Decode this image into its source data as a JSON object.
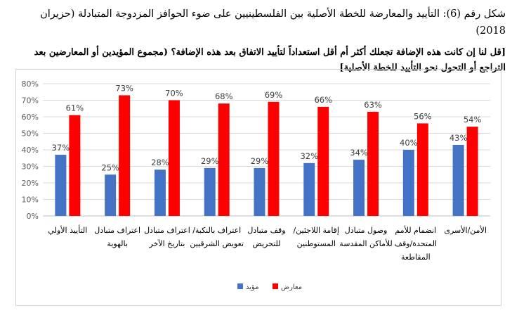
{
  "title": "شكل رقم (6): التأييد والمعارضة للخطة الأصلية بين الفلسطينيين  على ضوء الحوافز المزدوجة المتبادلة (حزيران 2018)",
  "subtitle": "[قل لنا إن كانت هذه الإضافة تجعلك أكثر أم أقل استعداداً لتأييد الاتفاق بعد هذه الإضافة؟ (مجموع المؤيدين أو المعارضين بعد التراجع أو التحول نحو التأييد للخطة الأصلية]",
  "colors": {
    "support": "#4472C4",
    "oppose": "#FF0000",
    "grid": "#D9D9D9",
    "axis": "#595959"
  },
  "chart_data": {
    "type": "bar",
    "categories": [
      [
        "التأييد الأولي"
      ],
      [
        "اعتراف متبادل",
        "بالهوية"
      ],
      [
        "اعتراف متبادل",
        "بتاريخ الآخر"
      ],
      [
        "اعتراف بالنكبة/",
        "تعويض الشرقيين"
      ],
      [
        "وقف متبادل",
        "للتحريض"
      ],
      [
        "إقامة اللاجئين/",
        "المستوطنين"
      ],
      [
        "وصول متبادل",
        "للأماكن المقدسة"
      ],
      [
        "انضمام للأمم",
        "المتحدة/وقف",
        "المقاطعة"
      ],
      [
        "الأمن/الأسرى"
      ]
    ],
    "series": [
      {
        "name": "مؤيد",
        "values": [
          37,
          25,
          28,
          29,
          29,
          32,
          34,
          40,
          43
        ],
        "color": "#4472C4"
      },
      {
        "name": "معارض",
        "values": [
          61,
          73,
          70,
          68,
          69,
          66,
          63,
          56,
          54
        ],
        "color": "#FF0000"
      }
    ],
    "ylim": [
      0,
      80
    ],
    "yticks": [
      "0%",
      "10%",
      "20%",
      "30%",
      "40%",
      "50%",
      "60%",
      "70%",
      "80%"
    ],
    "grid": true,
    "legend_position": "bottom"
  }
}
